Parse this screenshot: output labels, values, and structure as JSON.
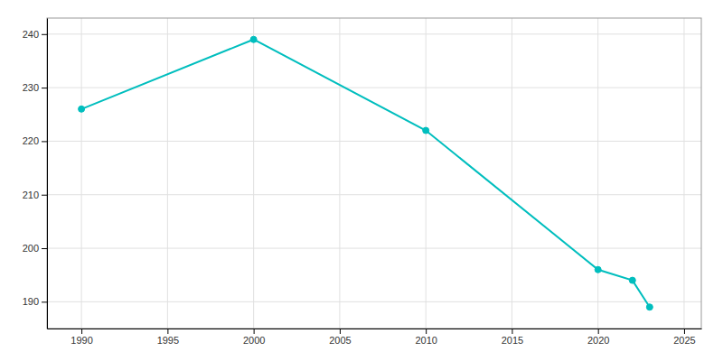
{
  "chart_data": {
    "type": "line",
    "x": [
      1990,
      2000,
      2010,
      2020,
      2022,
      2023
    ],
    "values": [
      226,
      239,
      222,
      196,
      194,
      189
    ],
    "color": "#00BEBE",
    "marker": "circle",
    "xlim": [
      1988,
      2026
    ],
    "ylim": [
      185,
      243
    ],
    "xticks": [
      1990,
      1995,
      2000,
      2005,
      2010,
      2015,
      2020,
      2025
    ],
    "yticks": [
      190,
      200,
      210,
      220,
      230,
      240
    ],
    "grid": true
  }
}
